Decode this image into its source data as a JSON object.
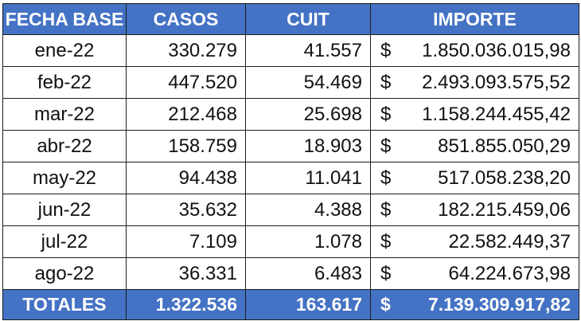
{
  "table": {
    "headers": [
      "FECHA BASE",
      "CASOS",
      "CUIT",
      "IMPORTE"
    ],
    "rows": [
      {
        "fecha": "ene-22",
        "casos": "330.279",
        "cuit": "41.557",
        "currency": "$",
        "importe": "1.850.036.015,98"
      },
      {
        "fecha": "feb-22",
        "casos": "447.520",
        "cuit": "54.469",
        "currency": "$",
        "importe": "2.493.093.575,52"
      },
      {
        "fecha": "mar-22",
        "casos": "212.468",
        "cuit": "25.698",
        "currency": "$",
        "importe": "1.158.244.455,42"
      },
      {
        "fecha": "abr-22",
        "casos": "158.759",
        "cuit": "18.903",
        "currency": "$",
        "importe": "851.855.050,29"
      },
      {
        "fecha": "may-22",
        "casos": "94.438",
        "cuit": "11.041",
        "currency": "$",
        "importe": "517.058.238,20"
      },
      {
        "fecha": "jun-22",
        "casos": "35.632",
        "cuit": "4.388",
        "currency": "$",
        "importe": "182.215.459,06"
      },
      {
        "fecha": "jul-22",
        "casos": "7.109",
        "cuit": "1.078",
        "currency": "$",
        "importe": "22.582.449,37"
      },
      {
        "fecha": "ago-22",
        "casos": "36.331",
        "cuit": "6.483",
        "currency": "$",
        "importe": "64.224.673,98"
      }
    ],
    "totals": {
      "label": "TOTALES",
      "casos": "1.322.536",
      "cuit": "163.617",
      "currency": "$",
      "importe": "7.139.309.917,82"
    }
  },
  "colors": {
    "header_bg": "#4472c4",
    "header_text": "#ffffff",
    "border": "#1c1c1c",
    "cell_bg": "#ffffff"
  }
}
